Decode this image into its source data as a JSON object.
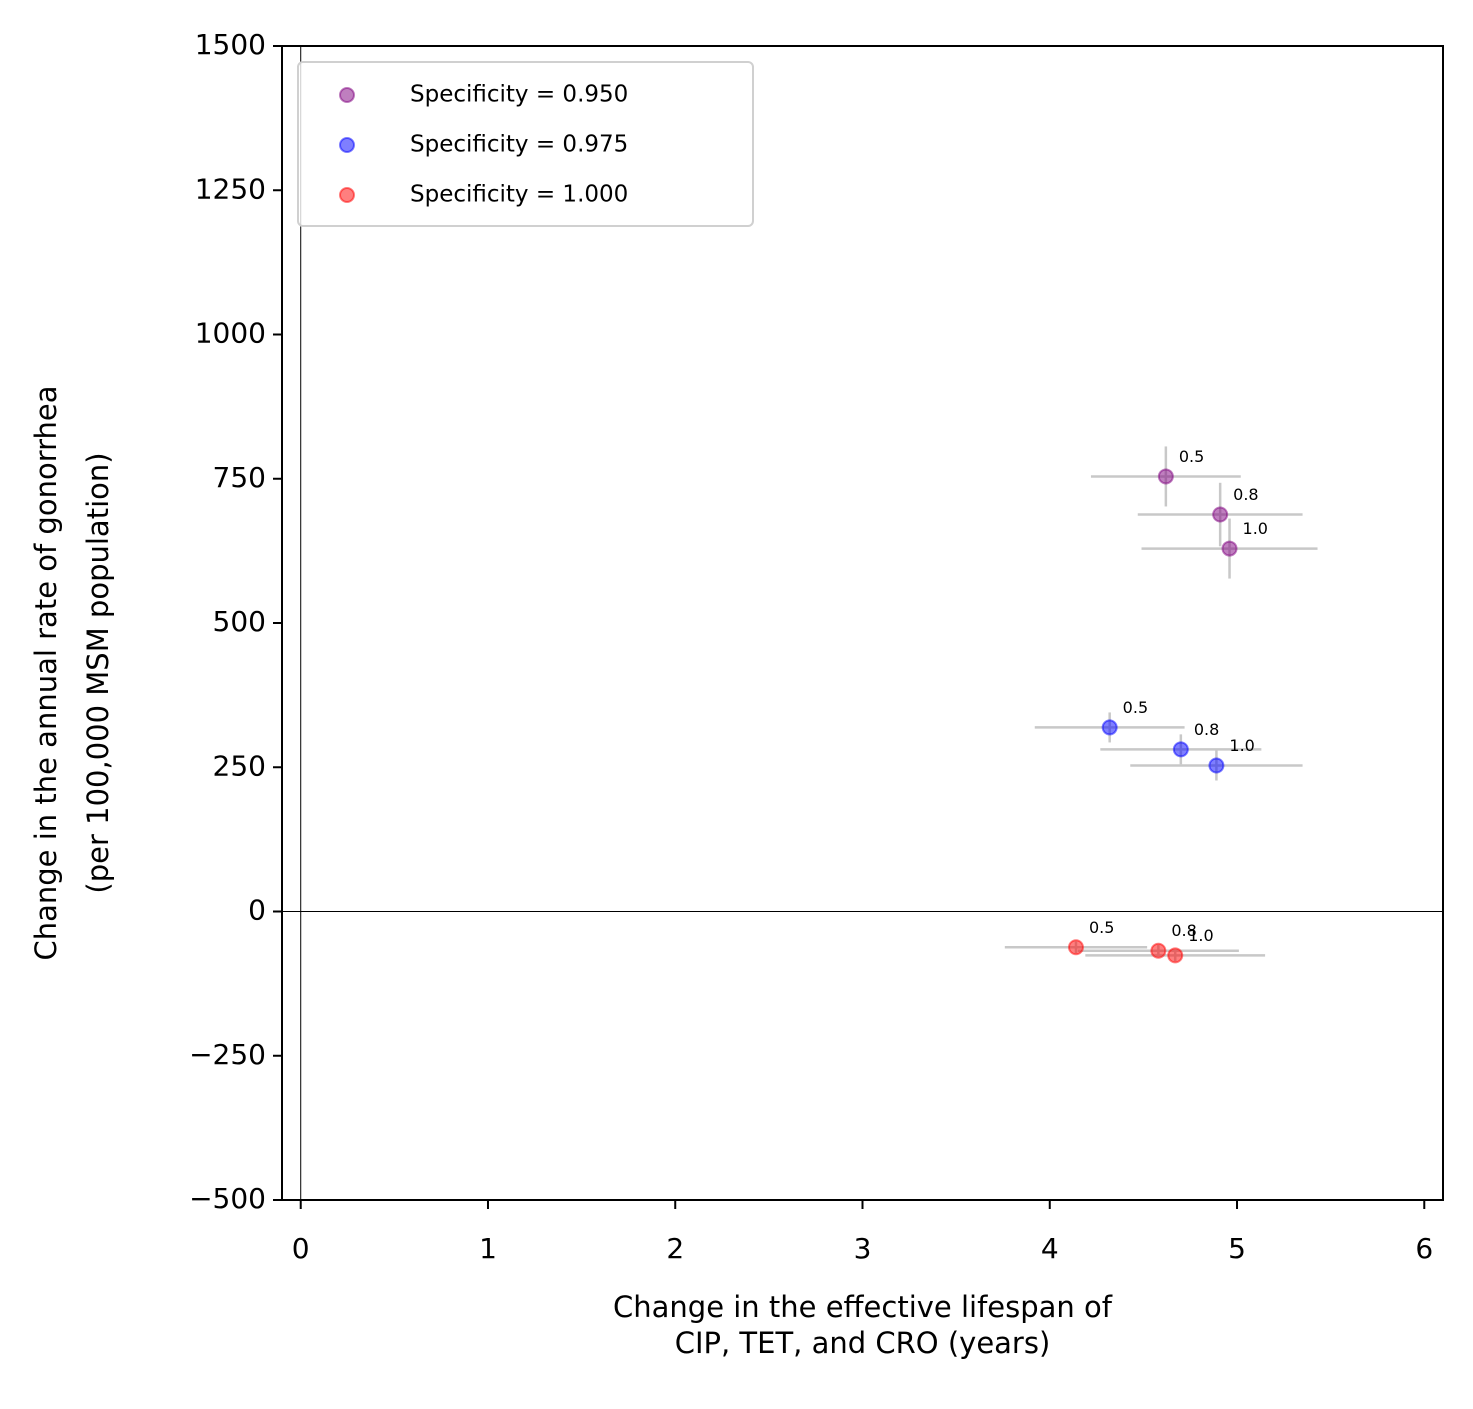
{
  "chart_data": {
    "type": "scatter",
    "x_label": [
      "Change in the effective lifespan of",
      "CIP, TET, and CRO (years)"
    ],
    "y_label": [
      "Change in the annual rate of gonorrhea",
      "(per 100,000 MSM population)"
    ],
    "xlim": [
      -0.1,
      6.1
    ],
    "xticks": [
      0,
      1,
      2,
      3,
      4,
      5,
      6
    ],
    "ylim": [
      -500,
      1500
    ],
    "yticks": [
      {
        "value": -500,
        "label": "−500"
      },
      {
        "value": -250,
        "label": "−250"
      },
      0,
      250,
      500,
      750,
      1000,
      1250,
      1500
    ],
    "hline": 0,
    "vline": 0,
    "legend": "upper left",
    "errorbar_color": "#c8c8c8",
    "series": [
      {
        "name": "Specificity = 0.950",
        "color": "#800080",
        "labels": [
          "0.5",
          "0.8",
          "1.0"
        ],
        "x": [
          4.62,
          4.91,
          4.96
        ],
        "values": [
          754,
          688,
          629
        ],
        "xerr": [
          0.4,
          0.44,
          0.47
        ],
        "yerr": [
          52,
          55,
          52
        ]
      },
      {
        "name": "Specificity = 0.975",
        "color": "#0000ff",
        "labels": [
          "0.5",
          "0.8",
          "1.0"
        ],
        "x": [
          4.32,
          4.7,
          4.89
        ],
        "values": [
          319,
          281,
          253
        ],
        "xerr": [
          0.4,
          0.43,
          0.46
        ],
        "yerr": [
          26,
          26,
          26
        ]
      },
      {
        "name": "Specificity = 1.000",
        "color": "#ff0000",
        "labels": [
          "0.5",
          "0.8",
          "1.0"
        ],
        "x": [
          4.14,
          4.58,
          4.67
        ],
        "values": [
          -62,
          -68,
          -76
        ],
        "xerr": [
          0.38,
          0.43,
          0.48
        ],
        "yerr": [
          10,
          10,
          10
        ]
      }
    ]
  }
}
